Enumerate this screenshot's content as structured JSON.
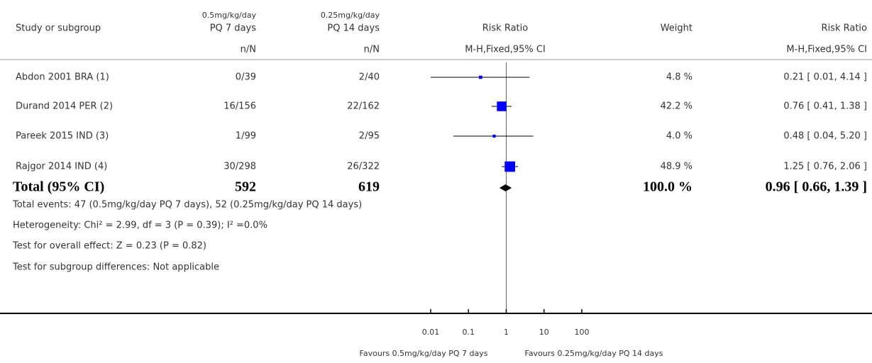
{
  "chart_data": {
    "type": "forest",
    "headers": {
      "study": "Study or subgroup",
      "group1": [
        "0.5mg/kg/day",
        "PQ 7 days"
      ],
      "group2": [
        "0.25mg/kg/day",
        "PQ 14 days"
      ],
      "effect": "Risk Ratio",
      "weight": "Weight",
      "effect2": "Risk Ratio",
      "unit1": "n/N",
      "unit2": "n/N",
      "method": "M-H,Fixed,95% CI",
      "method2": "M-H,Fixed,95% CI"
    },
    "studies": [
      {
        "name": "Abdon 2001 BRA (1)",
        "group1": "0/39",
        "group2": "2/40",
        "rr": 0.21,
        "ci": [
          0.01,
          4.14
        ],
        "weight": 4.8,
        "weight_label": "4.8 %",
        "ci_label": "0.21 [ 0.01, 4.14 ]"
      },
      {
        "name": "Durand 2014 PER (2)",
        "group1": "16/156",
        "group2": "22/162",
        "rr": 0.76,
        "ci": [
          0.41,
          1.38
        ],
        "weight": 42.2,
        "weight_label": "42.2 %",
        "ci_label": "0.76 [ 0.41, 1.38 ]"
      },
      {
        "name": "Pareek 2015 IND (3)",
        "group1": "1/99",
        "group2": "2/95",
        "rr": 0.48,
        "ci": [
          0.04,
          5.2
        ],
        "weight": 4.0,
        "weight_label": "4.0 %",
        "ci_label": "0.48 [ 0.04, 5.20 ]"
      },
      {
        "name": "Rajgor 2014 IND (4)",
        "group1": "30/298",
        "group2": "26/322",
        "rr": 1.25,
        "ci": [
          0.76,
          2.06
        ],
        "weight": 48.9,
        "weight_label": "48.9 %",
        "ci_label": "1.25 [ 0.76, 2.06 ]"
      }
    ],
    "total": {
      "name": "Total (95% CI)",
      "group1": 592,
      "group2": 619,
      "rr": 0.96,
      "ci": [
        0.66,
        1.39
      ],
      "weight": 100,
      "weight_label": "100.0 %",
      "ci_label": "0.96 [ 0.66, 1.39 ]"
    },
    "notes": [
      "Total events: 47 (0.5mg/kg/day PQ 7 days), 52 (0.25mg/kg/day PQ 14 days)",
      "Heterogeneity: Chi² = 2.99, df = 3 (P = 0.39); I² =0.0%",
      "Test for overall effect: Z = 0.23 (P = 0.82)",
      "Test for subgroup differences: Not applicable"
    ],
    "xlim": [
      0.01,
      100
    ],
    "xticks": [
      0.01,
      0.1,
      1,
      10,
      100
    ],
    "log": true,
    "favours": [
      "Favours 0.5mg/kg/day PQ 7 days",
      "Favours 0.25mg/kg/day PQ 14 days"
    ],
    "square_color": "#0000ff"
  }
}
